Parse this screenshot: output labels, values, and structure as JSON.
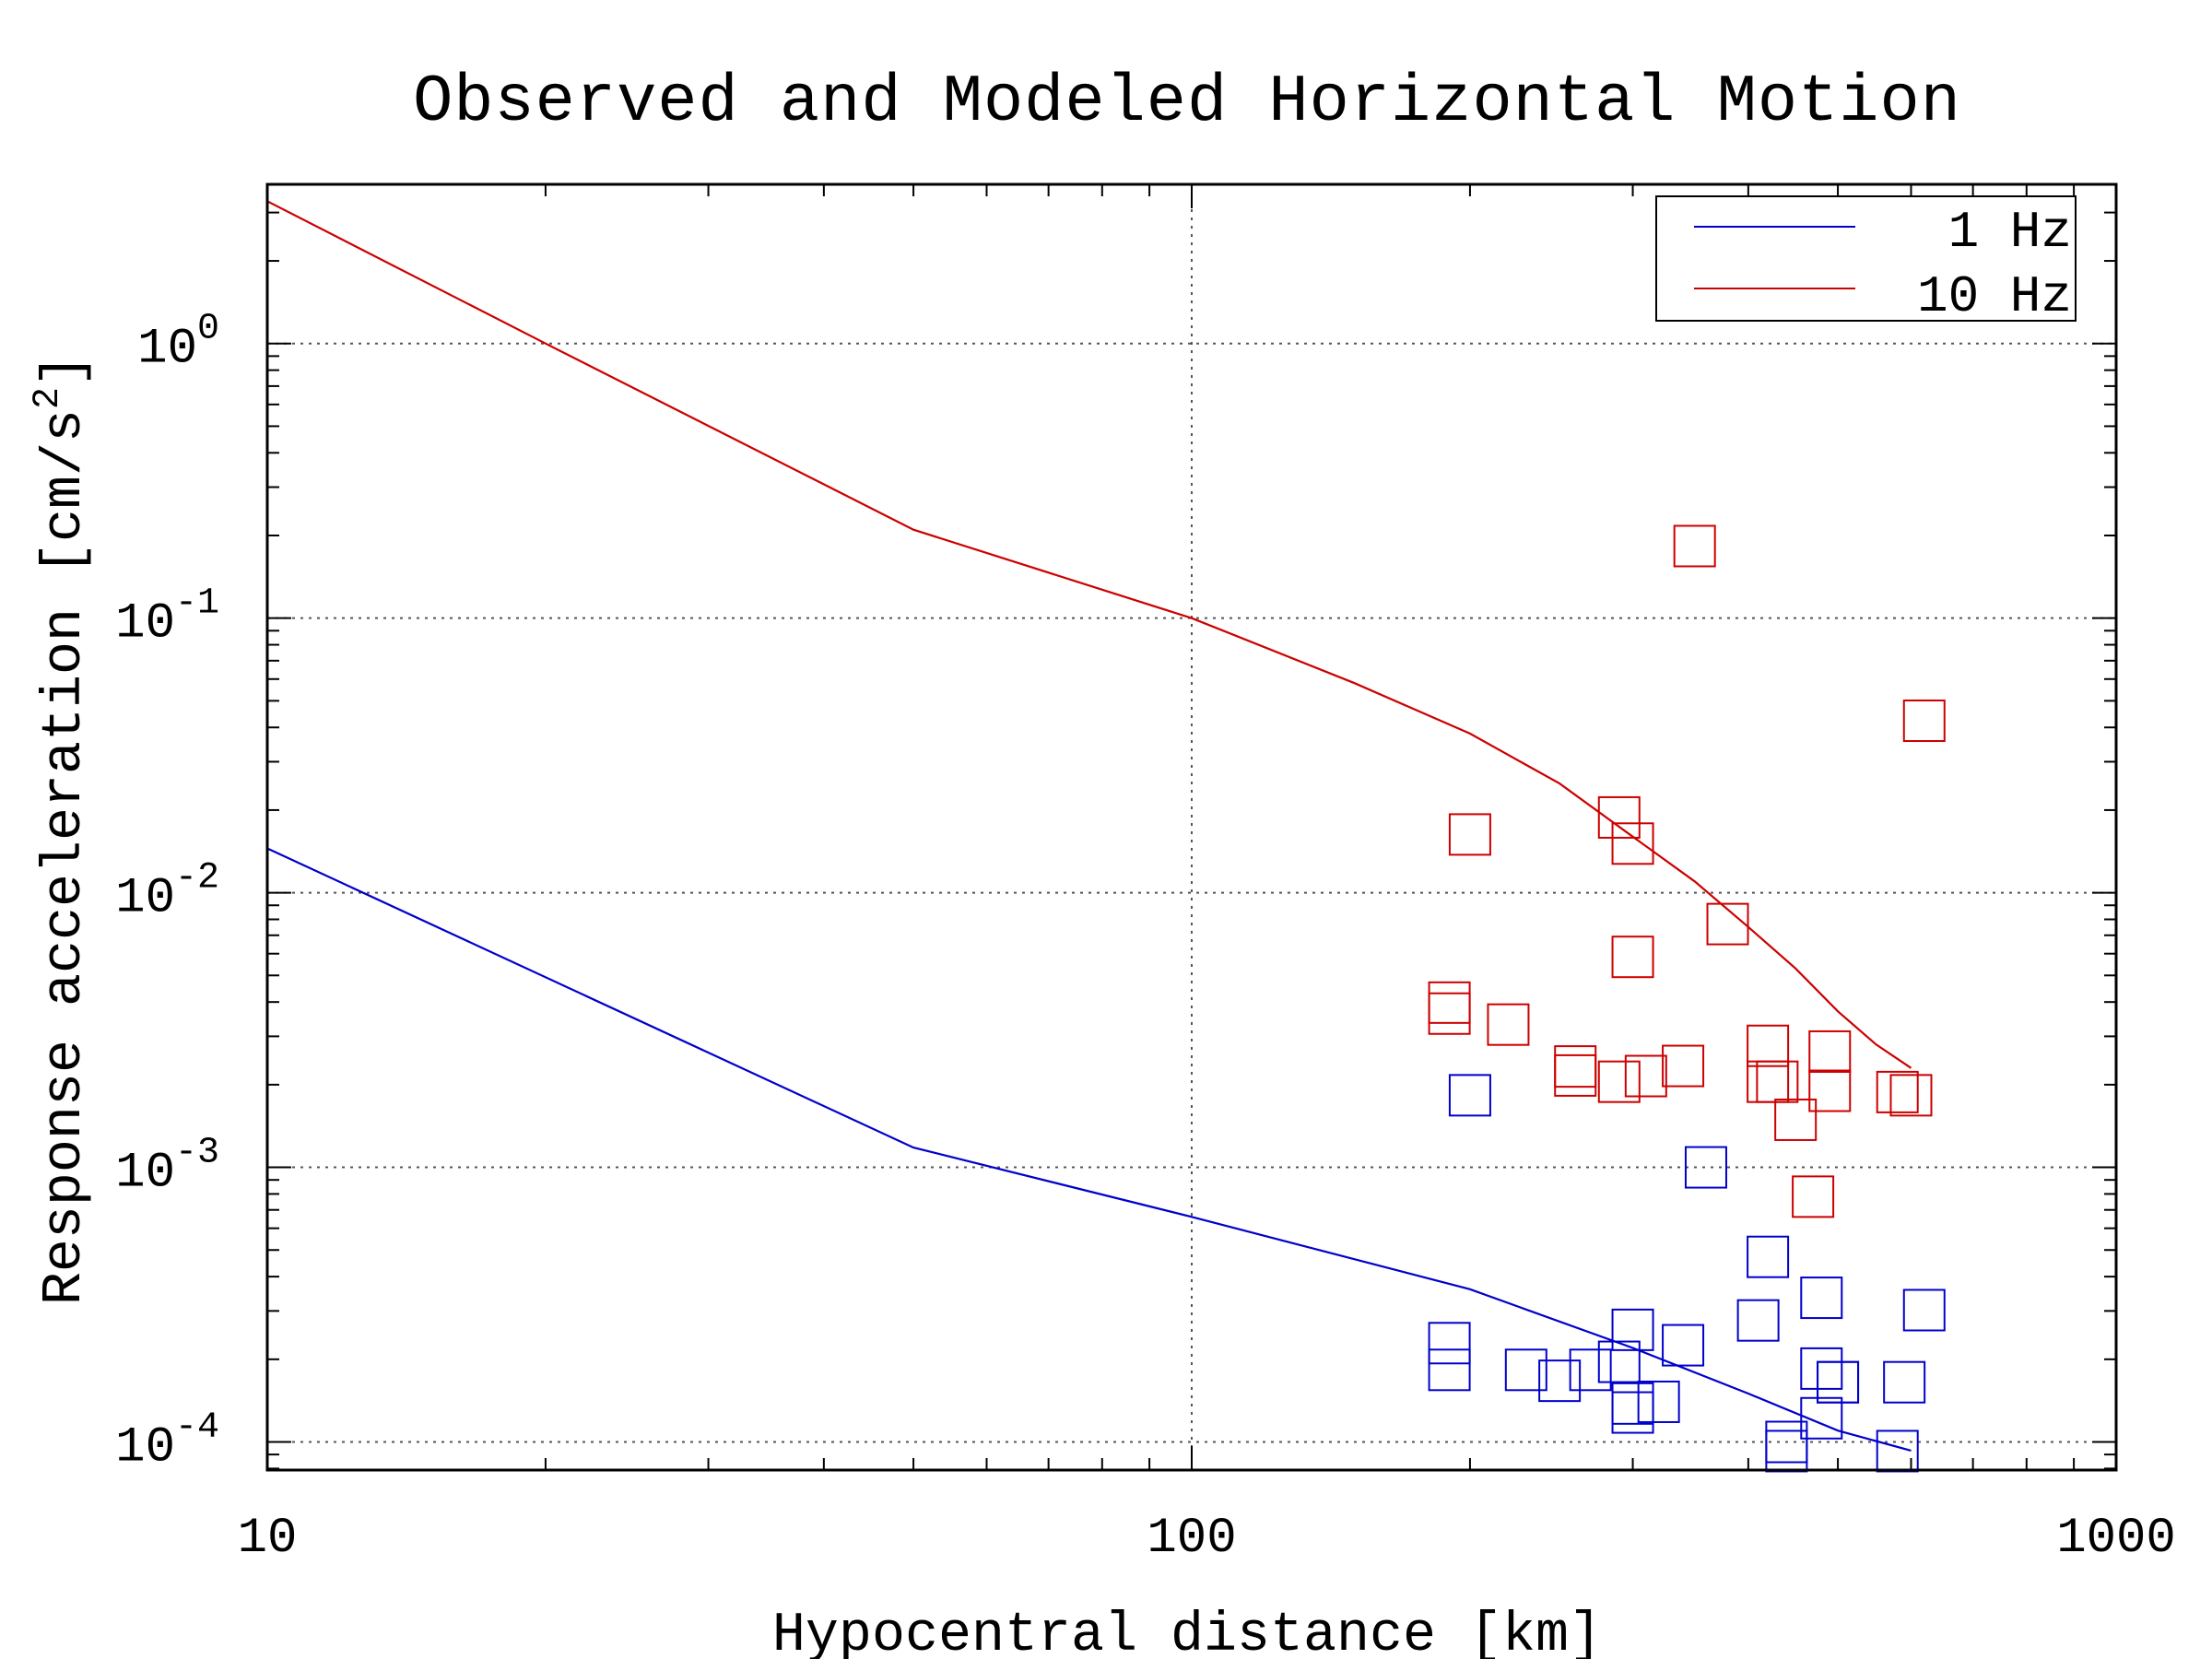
{
  "chart_data": {
    "type": "scatter",
    "title": "Observed and Modeled Horizontal Motion",
    "xlabel": "Hypocentral distance [km]",
    "ylabel": "Response acceleration [cm/s",
    "ylabel_sup": "2",
    "ylabel_close": "]",
    "xscale": "log",
    "yscale": "log",
    "xlim": [
      10,
      1000
    ],
    "ylim": [
      7.9e-05,
      3.8
    ],
    "grid": true,
    "legend_position": "top-right",
    "x_ticks": [
      {
        "value": 10,
        "label": "10"
      },
      {
        "value": 100,
        "label": "100"
      },
      {
        "value": 1000,
        "label": "1000"
      }
    ],
    "y_ticks": [
      {
        "value": 1,
        "base": "10",
        "exp": "0"
      },
      {
        "value": 0.1,
        "base": "10",
        "exp": "-1"
      },
      {
        "value": 0.01,
        "base": "10",
        "exp": "-2"
      },
      {
        "value": 0.001,
        "base": "10",
        "exp": "-3"
      },
      {
        "value": 0.0001,
        "base": "10",
        "exp": "-4"
      }
    ],
    "series": [
      {
        "name": "1 Hz",
        "color": "#0000cc",
        "model": {
          "x": [
            10,
            50,
            100,
            200,
            300,
            400,
            500,
            600
          ],
          "y": [
            0.0145,
            0.00118,
            0.00066,
            0.00036,
            0.00022,
            0.00015,
            0.00011,
            9.3e-05
          ]
        },
        "observed": {
          "x": [
            200,
            300,
            290,
            190,
            190,
            250,
            230,
            270,
            300,
            300,
            320,
            340,
            360,
            410,
            420,
            440,
            440,
            480,
            480,
            480,
            500,
            500,
            580,
            590,
            620
          ],
          "y": [
            0.00183,
            0.000256,
            0.0001958,
            0.000229,
            0.000183,
            0.000167,
            0.000183,
            0.000183,
            0.000138,
            0.000128,
            0.00014,
            0.000225,
            0.001,
            0.000277,
            0.000472,
            0.0001,
            9.26e-05,
            0.000122,
            0.000335,
            0.000185,
            0.000165,
            0.000165,
            9.26e-05,
            0.000165,
            0.000302
          ]
        }
      },
      {
        "name": "10 Hz",
        "color": "#cc0000",
        "model": {
          "x": [
            10,
            20,
            50,
            100,
            150,
            200,
            250,
            300,
            350,
            400,
            450,
            500,
            550,
            600
          ],
          "y": [
            3.3,
            1.0,
            0.21,
            0.1,
            0.058,
            0.038,
            0.025,
            0.016,
            0.011,
            0.0075,
            0.0053,
            0.0037,
            0.0028,
            0.0023
          ]
        },
        "observed": {
          "x": [
            200,
            290,
            300,
            300,
            190,
            190,
            220,
            260,
            260,
            290,
            310,
            340,
            350,
            380,
            420,
            420,
            430,
            450,
            470,
            490,
            490,
            580,
            600,
            620
          ],
          "y": [
            0.0163,
            0.0188,
            0.0151,
            0.00584,
            0.00398,
            0.00363,
            0.00331,
            0.00233,
            0.00216,
            0.00205,
            0.00215,
            0.00234,
            0.183,
            0.00769,
            0.00277,
            0.00205,
            0.00205,
            0.00149,
            0.000782,
            0.00264,
            0.0019,
            0.00188,
            0.00183,
            0.0423
          ]
        }
      }
    ]
  }
}
